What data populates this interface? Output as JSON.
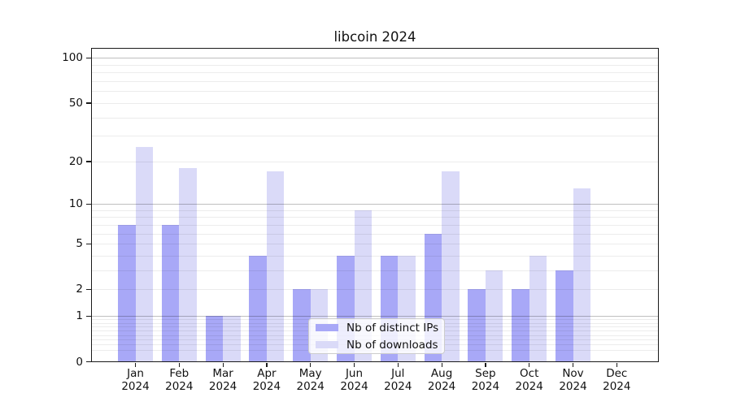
{
  "chart_data": {
    "type": "bar",
    "title": "libcoin 2024",
    "categories": [
      "Jan",
      "Feb",
      "Mar",
      "Apr",
      "May",
      "Jun",
      "Jul",
      "Aug",
      "Sep",
      "Oct",
      "Nov",
      "Dec"
    ],
    "category_year": "2024",
    "series": [
      {
        "name": "Nb of distinct IPs",
        "color": "#a8a8f7",
        "values": [
          7,
          7,
          1,
          4,
          2,
          4,
          4,
          6,
          2,
          2,
          3,
          0
        ]
      },
      {
        "name": "Nb of downloads",
        "color": "#dadaf8",
        "values": [
          25,
          18,
          1,
          17,
          2,
          9,
          4,
          17,
          3,
          4,
          13,
          0
        ]
      }
    ],
    "xlabel": "",
    "ylabel": "",
    "yscale": "log1p",
    "ylim": [
      0,
      115
    ],
    "yticks": [
      100,
      50,
      20,
      10,
      5,
      2,
      1,
      0
    ],
    "ytick_labels": [
      "100",
      "50",
      "20",
      "10",
      "5",
      "2",
      "1",
      "0"
    ],
    "major_gridlines": [
      1,
      10,
      100
    ],
    "minor_gridlines": [
      0.2,
      0.3,
      0.4,
      0.5,
      0.6,
      0.7,
      0.8,
      0.9,
      2,
      3,
      4,
      5,
      6,
      7,
      8,
      9,
      20,
      30,
      40,
      50,
      60,
      70,
      80,
      90
    ],
    "grid": true,
    "legend_position": "lower center",
    "colors": {
      "spine": "#1a1a1a",
      "major_grid": "#c4c4c4",
      "minor_grid": "#ebebeb",
      "background": "#ffffff"
    }
  }
}
